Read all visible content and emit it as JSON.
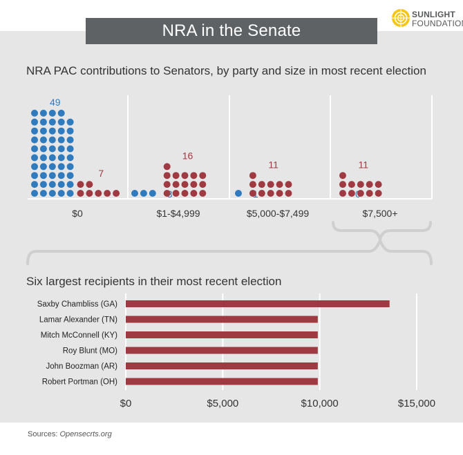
{
  "header": {
    "title": "NRA in the Senate",
    "logo_line1": "SUNLIGHT",
    "logo_line2": "FOUNDATION"
  },
  "colors": {
    "democrat": "#2f7bbd",
    "republican": "#a03a42",
    "panel": "#e6e6e6",
    "title_bg": "#5f6264",
    "logo_yellow": "#f6c515"
  },
  "section1_title": "NRA PAC contributions to Senators, by party and size in most recent election",
  "section2_title": "Six largest recipients in their most recent election",
  "sources_label": "Sources:",
  "sources_text": "Opensecrts.org",
  "chart_data": [
    {
      "type": "bar",
      "title": "NRA PAC contributions to Senators, by party and size in most recent election",
      "categories": [
        "$0",
        "$1-$4,999",
        "$5,000-$7,499",
        "$7,500+"
      ],
      "series": [
        {
          "color": "#2f7bbd",
          "values": [
            49,
            3,
            1,
            0
          ]
        },
        {
          "color": "#a03a42",
          "values": [
            7,
            16,
            11,
            11
          ]
        }
      ]
    },
    {
      "type": "bar",
      "orientation": "horizontal",
      "title": "Six largest recipients in their most recent election",
      "categories": [
        "Saxby Chambliss (GA)",
        "Lamar Alexander (TN)",
        "Mitch McConnell (KY)",
        "Roy Blunt (MO)",
        "John Boozman (AR)",
        "Robert Portman (OH)"
      ],
      "values": [
        13600,
        9900,
        9900,
        9900,
        9900,
        9900
      ],
      "xlim": [
        0,
        15000
      ],
      "ticks": [
        "$0",
        "$5,000",
        "$10,000",
        "$15,000"
      ],
      "grid": true,
      "color": "#a03a42"
    }
  ]
}
